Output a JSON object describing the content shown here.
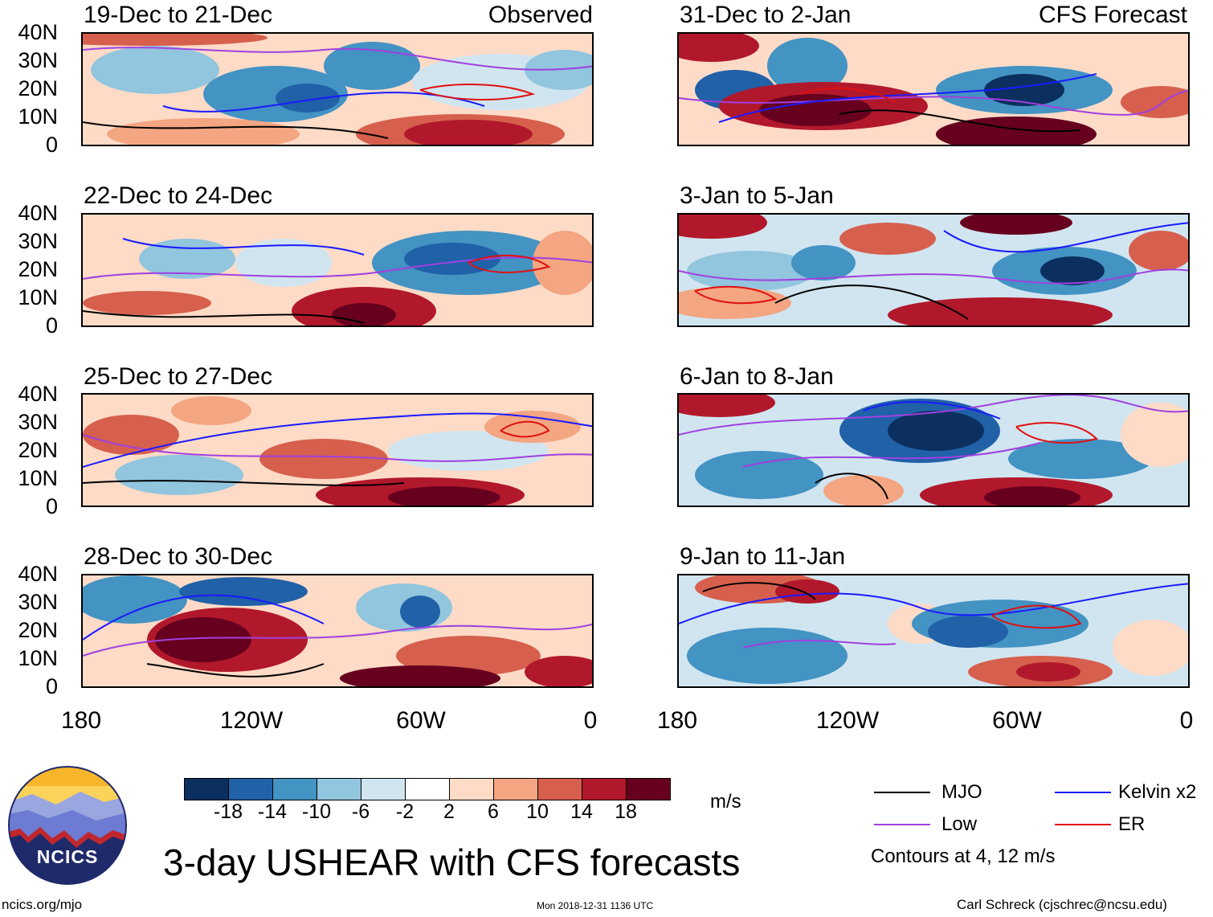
{
  "panels": {
    "observed_label": "Observed",
    "forecast_label": "CFS Forecast",
    "left": [
      "19-Dec to 21-Dec",
      "22-Dec to 24-Dec",
      "25-Dec to 27-Dec",
      "28-Dec to 30-Dec"
    ],
    "right": [
      "31-Dec to 2-Jan",
      "3-Jan to 5-Jan",
      "6-Jan to 8-Jan",
      "9-Jan to 11-Jan"
    ]
  },
  "axes": {
    "lat_ticks": [
      "40N",
      "30N",
      "20N",
      "10N",
      "0"
    ],
    "lon_ticks": [
      "180",
      "120W",
      "60W",
      "0"
    ]
  },
  "colorbar": {
    "labels": [
      "-18",
      "-14",
      "-10",
      "-6",
      "-2",
      "2",
      "6",
      "10",
      "14",
      "18"
    ],
    "colors": [
      "#0b2f5e",
      "#2061a8",
      "#4393c3",
      "#92c5de",
      "#d1e5f0",
      "#ffffff",
      "#fddbc7",
      "#f4a582",
      "#d6604d",
      "#b2182b",
      "#67001f"
    ],
    "units": "m/s"
  },
  "legend": {
    "mjo": {
      "label": "MJO",
      "color": "#000000"
    },
    "kelvin": {
      "label": "Kelvin x2",
      "color": "#1a1aff"
    },
    "low": {
      "label": "Low",
      "color": "#a040e0"
    },
    "er": {
      "label": "ER",
      "color": "#e01010"
    },
    "contours_note": "Contours at 4, 12 m/s"
  },
  "footer": {
    "title": "3-day USHEAR with CFS forecasts",
    "logo_text": "NCICS",
    "site": "ncics.org/mjo",
    "timestamp": "Mon 2018-12-31 1136 UTC",
    "credit": "Carl Schreck (cjschrec@ncsu.edu)"
  }
}
